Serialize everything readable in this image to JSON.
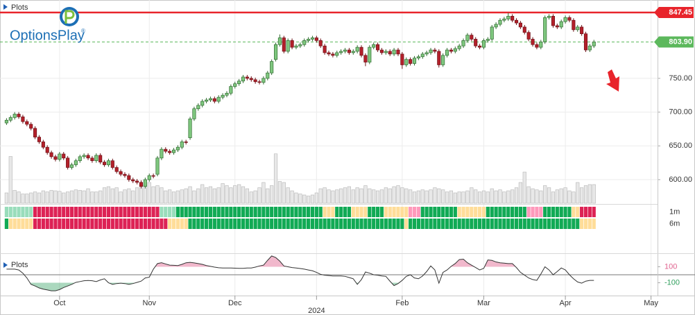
{
  "chart_data": {
    "type": "candlestick",
    "panel_title": "Plots",
    "brand": "OptionsPlay",
    "brand_mark": "®",
    "up_color": "#7fc77f",
    "up_edge": "#2f6b2f",
    "down_color": "#b3202a",
    "down_edge": "#6e1016",
    "xlim": [
      -1.6,
      159.6
    ],
    "xticks": [
      {
        "value": 13,
        "label": "Oct"
      },
      {
        "value": 35,
        "label": "Nov"
      },
      {
        "value": 56,
        "label": "Dec"
      },
      {
        "value": 76,
        "label": "2024"
      },
      {
        "value": 97,
        "label": "Feb"
      },
      {
        "value": 117,
        "label": "Mar"
      },
      {
        "value": 137,
        "label": "Apr"
      },
      {
        "value": 158,
        "label": "May"
      }
    ],
    "ylim": [
      565,
      866
    ],
    "yticks": [
      {
        "value": 600,
        "label": "600.00"
      },
      {
        "value": 650,
        "label": "650.00"
      },
      {
        "value": 700,
        "label": "700.00"
      },
      {
        "value": 750,
        "label": "750.00"
      }
    ],
    "grid": true,
    "levels": [
      {
        "value": 847.45,
        "label": "847.45",
        "color": "#e8242b",
        "style": "solid"
      },
      {
        "value": 803.9,
        "label": "803.90",
        "color": "#5cb85c",
        "style": "dashed"
      }
    ],
    "open": [
      684,
      688,
      692,
      697,
      693,
      686,
      682,
      676,
      663,
      656,
      648,
      640,
      634,
      630,
      638,
      632,
      618,
      622,
      628,
      634,
      636,
      632,
      628,
      636,
      626,
      622,
      628,
      618,
      612,
      608,
      606,
      600,
      598,
      596,
      590,
      600,
      606,
      608,
      632,
      645,
      642,
      640,
      644,
      648,
      656,
      662,
      690,
      705,
      710,
      716,
      718,
      720,
      716,
      722,
      725,
      728,
      738,
      742,
      746,
      752,
      750,
      748,
      745,
      744,
      750,
      758,
      778,
      800,
      810,
      790,
      806,
      796,
      798,
      800,
      806,
      808,
      810,
      806,
      798,
      788,
      786,
      784,
      788,
      790,
      792,
      788,
      790,
      796,
      784,
      774,
      796,
      800,
      792,
      788,
      790,
      786,
      792,
      786,
      770,
      778,
      772,
      780,
      782,
      786,
      788,
      792,
      790,
      770,
      784,
      792,
      790,
      794,
      798,
      806,
      814,
      808,
      798,
      796,
      806,
      808,
      826,
      830,
      836,
      838,
      842,
      836,
      832,
      826,
      818,
      808,
      800,
      796,
      804,
      840,
      842,
      828,
      826,
      834,
      840,
      836,
      822,
      826,
      816,
      792,
      798
    ],
    "high": [
      691,
      695,
      700,
      700,
      696,
      689,
      685,
      679,
      666,
      659,
      651,
      643,
      637,
      641,
      641,
      635,
      625,
      631,
      637,
      639,
      639,
      635,
      639,
      639,
      629,
      631,
      631,
      621,
      615,
      611,
      609,
      603,
      601,
      599,
      603,
      609,
      609,
      635,
      648,
      648,
      645,
      647,
      651,
      659,
      659,
      693,
      708,
      713,
      719,
      721,
      723,
      723,
      725,
      728,
      731,
      741,
      745,
      749,
      755,
      755,
      753,
      751,
      748,
      753,
      761,
      778,
      803,
      815,
      813,
      809,
      809,
      801,
      803,
      809,
      811,
      813,
      813,
      809,
      801,
      791,
      789,
      791,
      793,
      795,
      795,
      793,
      799,
      799,
      787,
      799,
      803,
      803,
      795,
      793,
      793,
      795,
      795,
      789,
      781,
      781,
      783,
      785,
      789,
      791,
      795,
      795,
      793,
      787,
      795,
      795,
      797,
      801,
      809,
      817,
      817,
      811,
      801,
      809,
      811,
      829,
      833,
      839,
      841,
      847,
      845,
      839,
      835,
      829,
      821,
      811,
      803,
      807,
      843,
      845,
      845,
      831,
      837,
      843,
      843,
      839,
      829,
      829,
      819,
      801,
      807
    ],
    "low": [
      681,
      685,
      689,
      690,
      683,
      679,
      673,
      660,
      653,
      645,
      637,
      631,
      627,
      627,
      629,
      615,
      615,
      619,
      625,
      631,
      629,
      625,
      625,
      623,
      619,
      619,
      615,
      609,
      605,
      603,
      597,
      595,
      593,
      587,
      587,
      597,
      602,
      605,
      629,
      639,
      637,
      637,
      641,
      645,
      652,
      659,
      687,
      702,
      707,
      713,
      715,
      713,
      713,
      719,
      722,
      725,
      735,
      739,
      743,
      747,
      745,
      742,
      741,
      741,
      747,
      755,
      775,
      797,
      787,
      787,
      793,
      793,
      795,
      797,
      803,
      805,
      803,
      795,
      785,
      783,
      781,
      781,
      785,
      787,
      785,
      785,
      787,
      781,
      768,
      771,
      793,
      789,
      785,
      785,
      783,
      783,
      783,
      764,
      767,
      769,
      769,
      777,
      779,
      783,
      785,
      787,
      766,
      767,
      781,
      787,
      787,
      791,
      795,
      803,
      805,
      795,
      793,
      793,
      803,
      805,
      823,
      827,
      833,
      835,
      833,
      829,
      823,
      815,
      805,
      797,
      793,
      793,
      801,
      837,
      825,
      823,
      823,
      831,
      833,
      819,
      819,
      813,
      789,
      789,
      795
    ],
    "close": [
      688,
      692,
      697,
      693,
      686,
      682,
      676,
      663,
      656,
      648,
      640,
      634,
      630,
      638,
      632,
      618,
      622,
      628,
      634,
      636,
      632,
      628,
      636,
      626,
      622,
      628,
      618,
      612,
      608,
      606,
      600,
      598,
      596,
      590,
      600,
      606,
      605,
      632,
      645,
      642,
      640,
      644,
      648,
      656,
      655,
      690,
      705,
      710,
      716,
      718,
      720,
      716,
      722,
      725,
      728,
      738,
      742,
      746,
      752,
      750,
      748,
      745,
      744,
      750,
      758,
      775,
      800,
      810,
      790,
      806,
      796,
      798,
      800,
      806,
      808,
      810,
      806,
      798,
      788,
      786,
      784,
      788,
      790,
      792,
      788,
      790,
      796,
      784,
      774,
      796,
      800,
      792,
      788,
      790,
      786,
      792,
      786,
      770,
      778,
      772,
      780,
      782,
      786,
      788,
      792,
      790,
      770,
      784,
      792,
      790,
      794,
      798,
      806,
      814,
      808,
      798,
      796,
      806,
      808,
      826,
      830,
      836,
      838,
      842,
      836,
      832,
      826,
      818,
      808,
      800,
      796,
      804,
      840,
      842,
      828,
      826,
      834,
      840,
      836,
      822,
      826,
      816,
      792,
      798,
      804
    ],
    "volume_ylim": [
      0,
      100
    ],
    "volume_color": "#e8e8e8",
    "volume": [
      20,
      90,
      25,
      22,
      18,
      18,
      20,
      22,
      20,
      24,
      22,
      25,
      24,
      23,
      20,
      22,
      24,
      26,
      25,
      24,
      28,
      22,
      22,
      24,
      30,
      32,
      28,
      30,
      22,
      26,
      28,
      24,
      30,
      34,
      36,
      40,
      32,
      34,
      30,
      24,
      26,
      22,
      24,
      26,
      28,
      32,
      24,
      28,
      36,
      30,
      32,
      28,
      30,
      38,
      34,
      30,
      34,
      36,
      32,
      28,
      22,
      24,
      30,
      40,
      28,
      34,
      95,
      42,
      40,
      30,
      24,
      20,
      18,
      16,
      14,
      16,
      20,
      28,
      30,
      26,
      24,
      26,
      28,
      30,
      32,
      26,
      30,
      28,
      34,
      28,
      26,
      24,
      26,
      30,
      28,
      32,
      34,
      30,
      28,
      26,
      22,
      24,
      26,
      24,
      26,
      30,
      28,
      26,
      22,
      24,
      20,
      22,
      22,
      24,
      30,
      26,
      22,
      24,
      22,
      28,
      24,
      26,
      22,
      24,
      26,
      30,
      40,
      60,
      32,
      28,
      26,
      24,
      34,
      30,
      22,
      26,
      28,
      30,
      24,
      22,
      40,
      30,
      34,
      36,
      36
    ],
    "signals": [
      {
        "name": "1m",
        "colors": [
          "#9db",
          "#9db",
          "#9db",
          "#9db",
          "#9db",
          "#9db",
          "#9db",
          "#d25",
          "#d25",
          "#d25",
          "#d25",
          "#d25",
          "#d25",
          "#d25",
          "#d25",
          "#d25",
          "#d25",
          "#d25",
          "#d25",
          "#d25",
          "#d25",
          "#d25",
          "#d25",
          "#d25",
          "#d25",
          "#d25",
          "#d25",
          "#d25",
          "#d25",
          "#d25",
          "#d25",
          "#d25",
          "#d25",
          "#d25",
          "#d25",
          "#d25",
          "#d25",
          "#d25",
          "#9db",
          "#9db",
          "#9db",
          "#9db",
          "#1a5",
          "#1a5",
          "#1a5",
          "#1a5",
          "#1a5",
          "#1a5",
          "#1a5",
          "#1a5",
          "#1a5",
          "#1a5",
          "#1a5",
          "#1a5",
          "#1a5",
          "#1a5",
          "#1a5",
          "#1a5",
          "#1a5",
          "#1a5",
          "#1a5",
          "#1a5",
          "#1a5",
          "#1a5",
          "#1a5",
          "#1a5",
          "#1a5",
          "#1a5",
          "#1a5",
          "#1a5",
          "#1a5",
          "#1a5",
          "#1a5",
          "#1a5",
          "#1a5",
          "#1a5",
          "#1a5",
          "#1a5",
          "#fd9",
          "#fd9",
          "#fd9",
          "#1a5",
          "#1a5",
          "#1a5",
          "#1a5",
          "#fd9",
          "#fd9",
          "#fd9",
          "#fd9",
          "#1a5",
          "#1a5",
          "#1a5",
          "#1a5",
          "#fd9",
          "#fd9",
          "#fd9",
          "#fd9",
          "#fd9",
          "#fd9",
          "#f9b",
          "#f9b",
          "#f9b",
          "#1a5",
          "#1a5",
          "#1a5",
          "#1a5",
          "#1a5",
          "#1a5",
          "#1a5",
          "#1a5",
          "#1a5",
          "#fd9",
          "#fd9",
          "#fd9",
          "#fd9",
          "#fd9",
          "#fd9",
          "#fd9",
          "#1a5",
          "#1a5",
          "#1a5",
          "#1a5",
          "#1a5",
          "#1a5",
          "#1a5",
          "#1a5",
          "#1a5",
          "#1a5",
          "#f9b",
          "#f9b",
          "#f9b",
          "#f9b",
          "#1a5",
          "#1a5",
          "#1a5",
          "#1a5",
          "#1a5",
          "#1a5",
          "#1a5",
          "#fd9",
          "#fd9",
          "#d25",
          "#d25",
          "#d25",
          "#d25"
        ]
      },
      {
        "name": "6m",
        "colors": [
          "#1a5",
          "#fd9",
          "#fd9",
          "#fd9",
          "#fd9",
          "#fd9",
          "#fd9",
          "#d25",
          "#d25",
          "#d25",
          "#d25",
          "#d25",
          "#d25",
          "#d25",
          "#d25",
          "#d25",
          "#d25",
          "#d25",
          "#d25",
          "#d25",
          "#d25",
          "#d25",
          "#d25",
          "#d25",
          "#d25",
          "#d25",
          "#d25",
          "#d25",
          "#d25",
          "#d25",
          "#d25",
          "#d25",
          "#d25",
          "#d25",
          "#d25",
          "#d25",
          "#d25",
          "#d25",
          "#d25",
          "#d25",
          "#fd9",
          "#fd9",
          "#fd9",
          "#fd9",
          "#fd9",
          "#1a5",
          "#1a5",
          "#1a5",
          "#1a5",
          "#1a5",
          "#1a5",
          "#1a5",
          "#1a5",
          "#1a5",
          "#1a5",
          "#1a5",
          "#1a5",
          "#1a5",
          "#1a5",
          "#1a5",
          "#1a5",
          "#1a5",
          "#1a5",
          "#1a5",
          "#1a5",
          "#1a5",
          "#1a5",
          "#1a5",
          "#1a5",
          "#1a5",
          "#1a5",
          "#1a5",
          "#1a5",
          "#1a5",
          "#1a5",
          "#1a5",
          "#1a5",
          "#1a5",
          "#1a5",
          "#1a5",
          "#1a5",
          "#1a5",
          "#1a5",
          "#1a5",
          "#1a5",
          "#1a5",
          "#1a5",
          "#1a5",
          "#1a5",
          "#1a5",
          "#1a5",
          "#1a5",
          "#1a5",
          "#1a5",
          "#1a5",
          "#1a5",
          "#1a5",
          "#1a5",
          "#fd9",
          "#1a5",
          "#1a5",
          "#1a5",
          "#1a5",
          "#1a5",
          "#1a5",
          "#1a5",
          "#1a5",
          "#1a5",
          "#1a5",
          "#1a5",
          "#1a5",
          "#1a5",
          "#1a5",
          "#1a5",
          "#1a5",
          "#1a5",
          "#1a5",
          "#1a5",
          "#1a5",
          "#1a5",
          "#1a5",
          "#1a5",
          "#1a5",
          "#1a5",
          "#1a5",
          "#1a5",
          "#1a5",
          "#1a5",
          "#1a5",
          "#1a5",
          "#1a5",
          "#1a5",
          "#1a5",
          "#1a5",
          "#1a5",
          "#1a5",
          "#1a5",
          "#1a5",
          "#1a5",
          "#1a5",
          "#1a5",
          "#fd9",
          "#fd9",
          "#fd9",
          "#fd9"
        ]
      }
    ],
    "oscillator": {
      "title": "Plots",
      "color": "#333333",
      "above_color": "#e0628e",
      "below_color": "#2e9e5c",
      "ylim": [
        -260,
        260
      ],
      "yticks": [
        100,
        -100
      ],
      "values": [
        70,
        70,
        70,
        60,
        20,
        -40,
        -120,
        -140,
        -165,
        -180,
        -190,
        -200,
        -200,
        -185,
        -160,
        -140,
        -120,
        -95,
        -85,
        -75,
        -72,
        -75,
        -85,
        -65,
        -50,
        -100,
        -120,
        -110,
        -105,
        -110,
        -120,
        -110,
        -95,
        -80,
        -40,
        -30,
        70,
        140,
        150,
        135,
        120,
        118,
        115,
        130,
        150,
        155,
        148,
        140,
        130,
        115,
        105,
        95,
        88,
        85,
        85,
        85,
        82,
        80,
        80,
        85,
        85,
        95,
        110,
        120,
        180,
        235,
        215,
        170,
        110,
        100,
        90,
        85,
        78,
        70,
        60,
        50,
        30,
        5,
        -5,
        -10,
        -15,
        -15,
        -15,
        -20,
        -35,
        -50,
        -120,
        -60,
        35,
        20,
        0,
        -5,
        -15,
        -20,
        -80,
        -135,
        -110,
        -70,
        -20,
        0,
        -40,
        -50,
        -15,
        40,
        110,
        60,
        -105,
        30,
        60,
        105,
        140,
        190,
        195,
        150,
        120,
        90,
        60,
        80,
        185,
        180,
        160,
        150,
        145,
        140,
        140,
        90,
        30,
        -5,
        -40,
        -60,
        -70,
        10,
        100,
        60,
        0,
        40,
        85,
        60,
        0,
        -50,
        -90,
        -105,
        -80,
        -70,
        -70
      ]
    }
  }
}
